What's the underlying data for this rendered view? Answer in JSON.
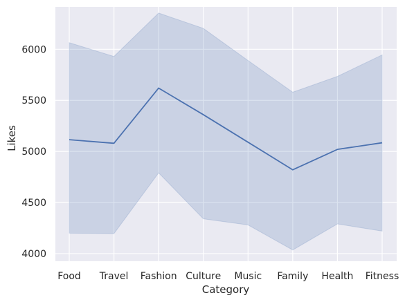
{
  "chart_data": {
    "type": "line",
    "xlabel": "Category",
    "ylabel": "Likes",
    "categories": [
      "Food",
      "Travel",
      "Fashion",
      "Culture",
      "Music",
      "Family",
      "Health",
      "Fitness"
    ],
    "series": [
      {
        "values": [
          5115,
          5080,
          5620,
          5360,
          5090,
          4820,
          5020,
          5085
        ],
        "ci_lower": [
          4200,
          4195,
          4790,
          4340,
          4280,
          4035,
          4290,
          4220
        ],
        "ci_upper": [
          6065,
          5930,
          6355,
          6205,
          5890,
          5580,
          5735,
          5945
        ]
      }
    ],
    "yticks": [
      4000,
      4500,
      5000,
      5500,
      6000
    ],
    "ylim": [
      3925,
      6415
    ],
    "grid": true,
    "colors": {
      "background": "#eaeaf2",
      "grid": "#ffffff",
      "line": "#4c72b0",
      "band": "#4c72b0"
    }
  }
}
